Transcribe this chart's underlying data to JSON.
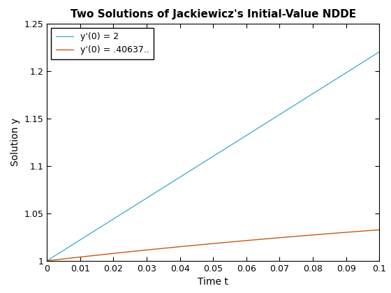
{
  "title": "Two Solutions of Jackiewicz's Initial-Value NDDE",
  "xlabel": "Time t",
  "ylabel": "Solution y",
  "xlim": [
    0,
    0.1
  ],
  "ylim": [
    1.0,
    1.25
  ],
  "xticks": [
    0,
    0.01,
    0.02,
    0.03,
    0.04,
    0.05,
    0.06,
    0.07,
    0.08,
    0.09,
    0.1
  ],
  "yticks": [
    1.0,
    1.05,
    1.1,
    1.15,
    1.2,
    1.25
  ],
  "line1_label": "y'(0) = 2",
  "line2_label": "y'(0) = .40637..",
  "line1_color": "#4daecc",
  "line2_color": "#c65a11",
  "line1_slope": 2.2,
  "line2_a": 0.09,
  "line2_b": 4.5,
  "background_color": "#ffffff",
  "legend_loc": "upper left",
  "title_fontsize": 11,
  "axis_label_fontsize": 10,
  "tick_fontsize": 9,
  "legend_fontsize": 9,
  "linewidth": 1.0
}
